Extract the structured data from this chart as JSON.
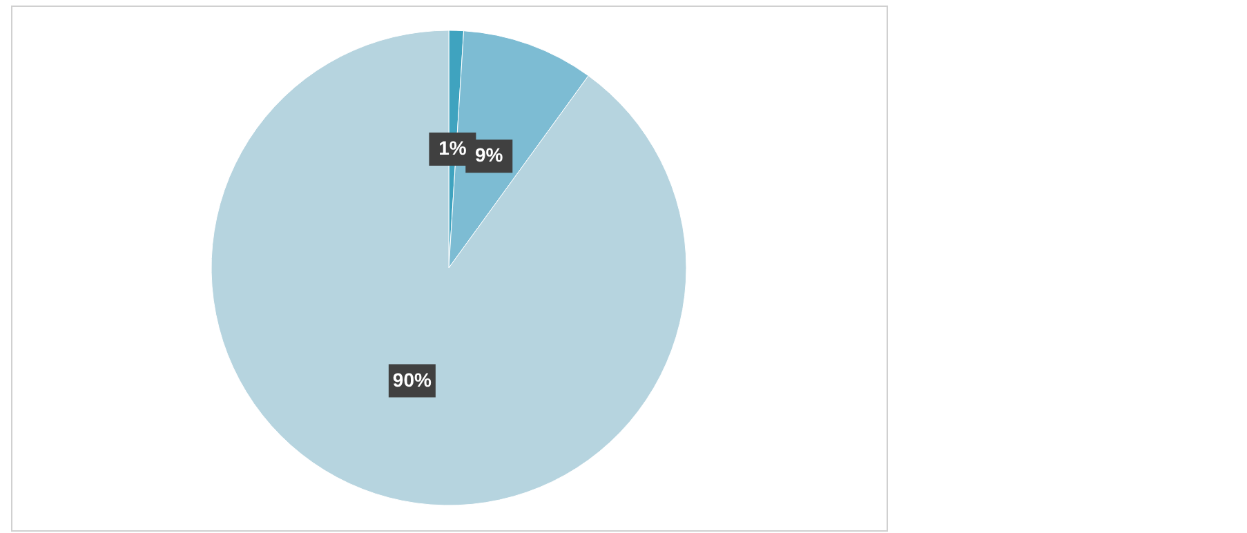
{
  "chart_data": {
    "type": "pie",
    "categories": [
      null,
      null,
      null
    ],
    "values": [
      1,
      9,
      90
    ],
    "colors": [
      "#3fa3bf",
      "#7dbcd3",
      "#b6d4df"
    ],
    "value_labels": [
      "1%",
      "9%",
      "90%"
    ]
  }
}
